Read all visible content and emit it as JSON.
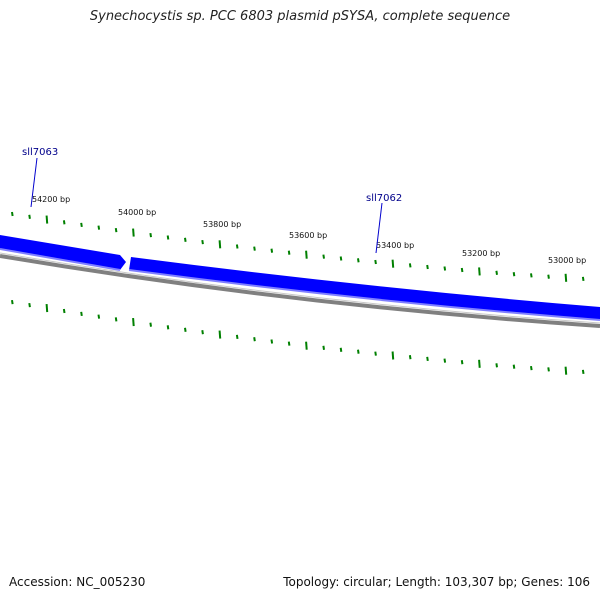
{
  "title": "Synechocystis sp. PCC 6803 plasmid pSYSA, complete sequence",
  "footer": {
    "accession_label": "Accession:",
    "accession": "NC_005230",
    "topology_label": "Topology:",
    "topology": "circular;",
    "length_label": "Length:",
    "length": "103,307 bp;",
    "genes_label": "Genes:",
    "genes": "106"
  },
  "ticks": [
    {
      "label": "54200 bp"
    },
    {
      "label": "54000 bp"
    },
    {
      "label": "53800 bp"
    },
    {
      "label": "53600 bp"
    },
    {
      "label": "53400 bp"
    },
    {
      "label": "53200 bp"
    },
    {
      "label": "53000 bp"
    }
  ],
  "genes_list": [
    {
      "name": "sll7063"
    },
    {
      "name": "sll7062"
    }
  ],
  "colors": {
    "gene": "#0000ff",
    "gene_light": "#7f7fff",
    "backbone": "#808080",
    "ticks": "#008000",
    "gene_label": "#00008b"
  }
}
